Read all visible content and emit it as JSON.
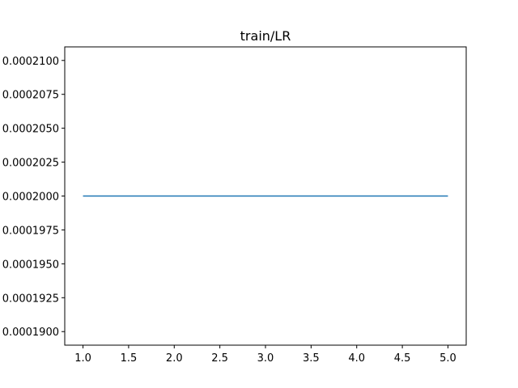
{
  "chart_data": {
    "type": "line",
    "title": "train/LR",
    "xlabel": "",
    "ylabel": "",
    "x": [
      1,
      2,
      3,
      4,
      5
    ],
    "series": [
      {
        "values": [
          0.0002,
          0.0002,
          0.0002,
          0.0002,
          0.0002
        ],
        "color": "#1f77b4"
      }
    ],
    "xlim": [
      0.8,
      5.2
    ],
    "ylim": [
      0.000189,
      0.000211
    ],
    "xticks": [
      "1.0",
      "1.5",
      "2.0",
      "2.5",
      "3.0",
      "3.5",
      "4.0",
      "4.5",
      "5.0"
    ],
    "yticks": [
      "0.0001900",
      "0.0001925",
      "0.0001950",
      "0.0001975",
      "0.0002000",
      "0.0002025",
      "0.0002050",
      "0.0002075",
      "0.0002100"
    ],
    "grid": false,
    "legend": "none"
  }
}
